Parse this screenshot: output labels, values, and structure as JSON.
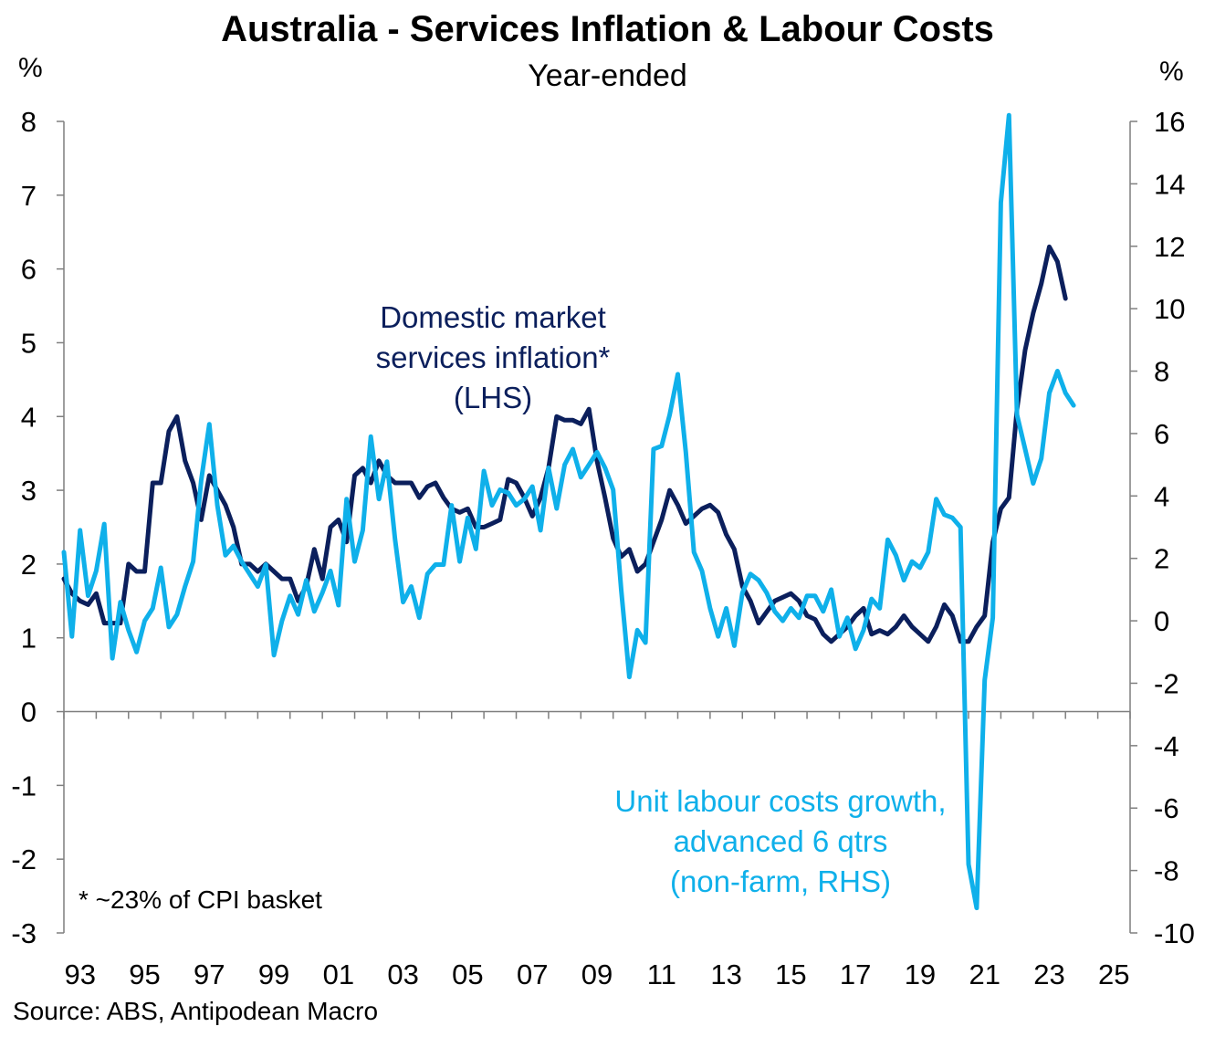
{
  "chart_data": {
    "type": "line",
    "title": "Australia - Services Inflation & Labour Costs",
    "subtitle": "Year-ended",
    "left_axis": {
      "label": "%",
      "min": -3,
      "max": 8,
      "ticks": [
        8,
        7,
        6,
        5,
        4,
        3,
        2,
        1,
        0,
        -1,
        -2,
        -3
      ]
    },
    "right_axis": {
      "label": "%",
      "min": -10,
      "max": 16,
      "ticks": [
        16,
        14,
        12,
        10,
        8,
        6,
        4,
        2,
        0,
        -2,
        -4,
        -6,
        -8,
        -10
      ]
    },
    "x_axis": {
      "min": 1993,
      "max": 2026,
      "tick_labels": [
        "93",
        "95",
        "97",
        "99",
        "01",
        "03",
        "05",
        "07",
        "09",
        "11",
        "13",
        "15",
        "17",
        "19",
        "21",
        "23",
        "25"
      ]
    },
    "series": [
      {
        "name": "Domestic market services inflation* (LHS)",
        "axis": "left",
        "color": "#0b1f5c",
        "points": [
          [
            1993.0,
            1.8
          ],
          [
            1993.25,
            1.6
          ],
          [
            1993.5,
            1.5
          ],
          [
            1993.75,
            1.45
          ],
          [
            1994.0,
            1.6
          ],
          [
            1994.25,
            1.2
          ],
          [
            1994.5,
            1.2
          ],
          [
            1994.75,
            1.2
          ],
          [
            1995.0,
            2.0
          ],
          [
            1995.25,
            1.9
          ],
          [
            1995.5,
            1.9
          ],
          [
            1995.75,
            3.1
          ],
          [
            1996.0,
            3.1
          ],
          [
            1996.25,
            3.8
          ],
          [
            1996.5,
            4.0
          ],
          [
            1996.75,
            3.4
          ],
          [
            1997.0,
            3.1
          ],
          [
            1997.25,
            2.6
          ],
          [
            1997.5,
            3.2
          ],
          [
            1997.75,
            3.0
          ],
          [
            1998.0,
            2.8
          ],
          [
            1998.25,
            2.5
          ],
          [
            1998.5,
            2.0
          ],
          [
            1998.75,
            2.0
          ],
          [
            1999.0,
            1.9
          ],
          [
            1999.25,
            2.0
          ],
          [
            1999.5,
            1.9
          ],
          [
            1999.75,
            1.8
          ],
          [
            2000.0,
            1.8
          ],
          [
            2000.25,
            1.5
          ],
          [
            2000.5,
            1.7
          ],
          [
            2000.75,
            2.2
          ],
          [
            2001.0,
            1.8
          ],
          [
            2001.25,
            2.5
          ],
          [
            2001.5,
            2.6
          ],
          [
            2001.75,
            2.3
          ],
          [
            2002.0,
            3.2
          ],
          [
            2002.25,
            3.3
          ],
          [
            2002.5,
            3.1
          ],
          [
            2002.75,
            3.4
          ],
          [
            2003.0,
            3.2
          ],
          [
            2003.25,
            3.1
          ],
          [
            2003.5,
            3.1
          ],
          [
            2003.75,
            3.1
          ],
          [
            2004.0,
            2.9
          ],
          [
            2004.25,
            3.05
          ],
          [
            2004.5,
            3.1
          ],
          [
            2004.75,
            2.9
          ],
          [
            2005.0,
            2.75
          ],
          [
            2005.25,
            2.7
          ],
          [
            2005.5,
            2.75
          ],
          [
            2005.75,
            2.5
          ],
          [
            2006.0,
            2.5
          ],
          [
            2006.25,
            2.55
          ],
          [
            2006.5,
            2.6
          ],
          [
            2006.75,
            3.15
          ],
          [
            2007.0,
            3.1
          ],
          [
            2007.25,
            2.9
          ],
          [
            2007.5,
            2.65
          ],
          [
            2007.75,
            2.9
          ],
          [
            2008.0,
            3.3
          ],
          [
            2008.25,
            4.0
          ],
          [
            2008.5,
            3.95
          ],
          [
            2008.75,
            3.95
          ],
          [
            2009.0,
            3.9
          ],
          [
            2009.25,
            4.1
          ],
          [
            2009.5,
            3.4
          ],
          [
            2009.75,
            2.9
          ],
          [
            2010.0,
            2.35
          ],
          [
            2010.25,
            2.1
          ],
          [
            2010.5,
            2.2
          ],
          [
            2010.75,
            1.9
          ],
          [
            2011.0,
            2.0
          ],
          [
            2011.25,
            2.3
          ],
          [
            2011.5,
            2.6
          ],
          [
            2011.75,
            3.0
          ],
          [
            2012.0,
            2.8
          ],
          [
            2012.25,
            2.55
          ],
          [
            2012.5,
            2.65
          ],
          [
            2012.75,
            2.75
          ],
          [
            2013.0,
            2.8
          ],
          [
            2013.25,
            2.7
          ],
          [
            2013.5,
            2.4
          ],
          [
            2013.75,
            2.2
          ],
          [
            2014.0,
            1.7
          ],
          [
            2014.25,
            1.5
          ],
          [
            2014.5,
            1.2
          ],
          [
            2014.75,
            1.35
          ],
          [
            2015.0,
            1.5
          ],
          [
            2015.25,
            1.55
          ],
          [
            2015.5,
            1.6
          ],
          [
            2015.75,
            1.5
          ],
          [
            2016.0,
            1.3
          ],
          [
            2016.25,
            1.25
          ],
          [
            2016.5,
            1.05
          ],
          [
            2016.75,
            0.95
          ],
          [
            2017.0,
            1.05
          ],
          [
            2017.25,
            1.15
          ],
          [
            2017.5,
            1.3
          ],
          [
            2017.75,
            1.4
          ],
          [
            2018.0,
            1.05
          ],
          [
            2018.25,
            1.1
          ],
          [
            2018.5,
            1.05
          ],
          [
            2018.75,
            1.15
          ],
          [
            2019.0,
            1.3
          ],
          [
            2019.25,
            1.15
          ],
          [
            2019.5,
            1.05
          ],
          [
            2019.75,
            0.95
          ],
          [
            2020.0,
            1.15
          ],
          [
            2020.25,
            1.45
          ],
          [
            2020.5,
            1.3
          ],
          [
            2020.75,
            0.95
          ],
          [
            2021.0,
            0.95
          ],
          [
            2021.25,
            1.15
          ],
          [
            2021.5,
            1.3
          ],
          [
            2021.75,
            2.3
          ],
          [
            2022.0,
            2.75
          ],
          [
            2022.25,
            2.9
          ],
          [
            2022.5,
            4.1
          ],
          [
            2022.75,
            4.9
          ],
          [
            2023.0,
            5.4
          ],
          [
            2023.25,
            5.8
          ],
          [
            2023.5,
            6.3
          ],
          [
            2023.75,
            6.1
          ],
          [
            2024.0,
            5.6
          ]
        ]
      },
      {
        "name": "Unit labour costs growth, advanced 6 qtrs (non-farm, RHS)",
        "axis": "right",
        "color": "#0fb0ea",
        "points": [
          [
            1993.0,
            2.2
          ],
          [
            1993.25,
            -0.5
          ],
          [
            1993.5,
            2.9
          ],
          [
            1993.75,
            0.8
          ],
          [
            1994.0,
            1.6
          ],
          [
            1994.25,
            3.1
          ],
          [
            1994.5,
            -1.2
          ],
          [
            1994.75,
            0.6
          ],
          [
            1995.0,
            -0.3
          ],
          [
            1995.25,
            -1.0
          ],
          [
            1995.5,
            0.0
          ],
          [
            1995.75,
            0.4
          ],
          [
            1996.0,
            1.7
          ],
          [
            1996.25,
            -0.2
          ],
          [
            1996.5,
            0.2
          ],
          [
            1996.75,
            1.1
          ],
          [
            1997.0,
            1.9
          ],
          [
            1997.25,
            4.5
          ],
          [
            1997.5,
            6.3
          ],
          [
            1997.75,
            3.7
          ],
          [
            1998.0,
            2.1
          ],
          [
            1998.25,
            2.4
          ],
          [
            1998.5,
            1.9
          ],
          [
            1998.75,
            1.5
          ],
          [
            1999.0,
            1.1
          ],
          [
            1999.25,
            1.8
          ],
          [
            1999.5,
            -1.1
          ],
          [
            1999.75,
            0.0
          ],
          [
            2000.0,
            0.8
          ],
          [
            2000.25,
            0.2
          ],
          [
            2000.5,
            1.3
          ],
          [
            2000.75,
            0.3
          ],
          [
            2001.0,
            0.9
          ],
          [
            2001.25,
            1.6
          ],
          [
            2001.5,
            0.5
          ],
          [
            2001.75,
            3.9
          ],
          [
            2002.0,
            1.9
          ],
          [
            2002.25,
            2.9
          ],
          [
            2002.5,
            5.9
          ],
          [
            2002.75,
            3.9
          ],
          [
            2003.0,
            5.1
          ],
          [
            2003.25,
            2.6
          ],
          [
            2003.5,
            0.6
          ],
          [
            2003.75,
            1.1
          ],
          [
            2004.0,
            0.1
          ],
          [
            2004.25,
            1.5
          ],
          [
            2004.5,
            1.8
          ],
          [
            2004.75,
            1.8
          ],
          [
            2005.0,
            3.7
          ],
          [
            2005.25,
            1.9
          ],
          [
            2005.5,
            3.3
          ],
          [
            2005.75,
            2.3
          ],
          [
            2006.0,
            4.8
          ],
          [
            2006.25,
            3.7
          ],
          [
            2006.5,
            4.2
          ],
          [
            2006.75,
            4.1
          ],
          [
            2007.0,
            3.7
          ],
          [
            2007.25,
            3.9
          ],
          [
            2007.5,
            4.3
          ],
          [
            2007.75,
            2.9
          ],
          [
            2008.0,
            4.9
          ],
          [
            2008.25,
            3.6
          ],
          [
            2008.5,
            5.0
          ],
          [
            2008.75,
            5.5
          ],
          [
            2009.0,
            4.6
          ],
          [
            2009.25,
            5.0
          ],
          [
            2009.5,
            5.4
          ],
          [
            2009.75,
            4.9
          ],
          [
            2010.0,
            4.2
          ],
          [
            2010.25,
            1.0
          ],
          [
            2010.5,
            -1.8
          ],
          [
            2010.75,
            -0.3
          ],
          [
            2011.0,
            -0.7
          ],
          [
            2011.25,
            5.5
          ],
          [
            2011.5,
            5.6
          ],
          [
            2011.75,
            6.6
          ],
          [
            2011.75,
            6.6
          ],
          [
            2012.0,
            7.9
          ],
          [
            2012.25,
            5.4
          ],
          [
            2012.5,
            2.2
          ],
          [
            2012.75,
            1.6
          ],
          [
            2013.0,
            0.4
          ],
          [
            2013.25,
            -0.5
          ],
          [
            2013.5,
            0.4
          ],
          [
            2013.75,
            -0.8
          ],
          [
            2014.0,
            0.9
          ],
          [
            2014.25,
            1.5
          ],
          [
            2014.5,
            1.3
          ],
          [
            2014.75,
            0.9
          ],
          [
            2015.0,
            0.3
          ],
          [
            2015.25,
            0.0
          ],
          [
            2015.5,
            0.4
          ],
          [
            2015.75,
            0.1
          ],
          [
            2016.0,
            0.8
          ],
          [
            2016.25,
            0.8
          ],
          [
            2016.5,
            0.3
          ],
          [
            2016.75,
            1.0
          ],
          [
            2017.0,
            -0.5
          ],
          [
            2017.25,
            0.1
          ],
          [
            2017.5,
            -0.9
          ],
          [
            2017.75,
            -0.3
          ],
          [
            2018.0,
            0.7
          ],
          [
            2018.25,
            0.4
          ],
          [
            2018.5,
            2.6
          ],
          [
            2018.75,
            2.1
          ],
          [
            2019.0,
            1.3
          ],
          [
            2019.25,
            1.9
          ],
          [
            2019.5,
            1.7
          ],
          [
            2019.75,
            2.2
          ],
          [
            2020.0,
            3.9
          ],
          [
            2020.25,
            3.4
          ],
          [
            2020.5,
            3.3
          ],
          [
            2020.75,
            3.0
          ],
          [
            2021.0,
            -7.8
          ],
          [
            2021.25,
            -9.2
          ],
          [
            2021.5,
            -1.9
          ],
          [
            2021.75,
            0.1
          ],
          [
            2022.0,
            13.4
          ],
          [
            2022.25,
            16.2
          ],
          [
            2022.5,
            6.6
          ],
          [
            2022.75,
            5.5
          ],
          [
            2023.0,
            4.4
          ],
          [
            2023.25,
            5.2
          ],
          [
            2023.5,
            7.3
          ],
          [
            2023.75,
            8.0
          ],
          [
            2024.0,
            7.3
          ],
          [
            2024.25,
            6.9
          ]
        ]
      }
    ],
    "annotations": {
      "dark_lines": [
        "Domestic market",
        "services inflation*",
        "(LHS)"
      ],
      "light_lines": [
        "Unit labour costs growth,",
        "advanced 6 qtrs",
        "(non-farm, RHS)"
      ]
    },
    "footnote": "* ~23% of CPI basket",
    "source": "Source: ABS, Antipodean Macro"
  }
}
